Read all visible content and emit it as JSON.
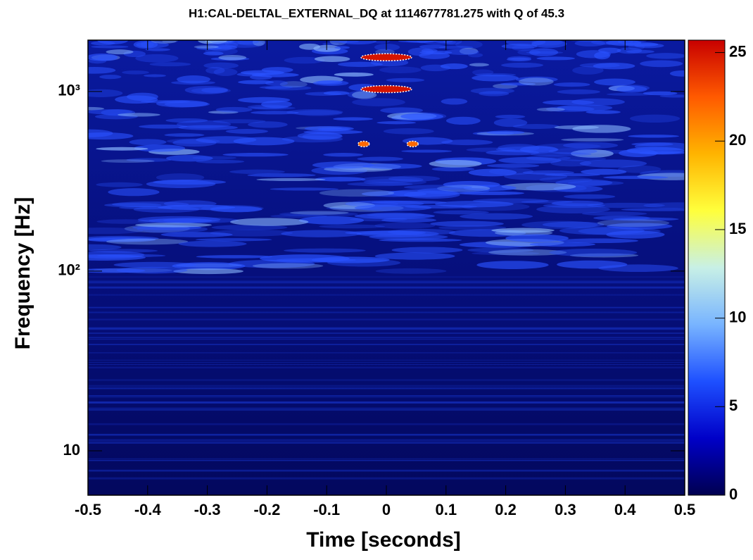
{
  "chart_data": {
    "type": "heatmap",
    "title": "H1:CAL-DELTAL_EXTERNAL_DQ at 1114677781.275 with Q of 45.3",
    "x_label": "Time [seconds]",
    "y_label": "Frequency [Hz]",
    "xlim": [
      -0.5,
      0.5
    ],
    "xticks": [
      -0.5,
      -0.4,
      -0.3,
      -0.2,
      -0.1,
      0,
      0.1,
      0.2,
      0.3,
      0.4,
      0.5
    ],
    "ylim": [
      5.66,
      1930
    ],
    "yscale": "log",
    "yticks": [
      10,
      {
        "value": 100,
        "label": "10²"
      },
      {
        "value": 1000,
        "label": "10³"
      }
    ],
    "zlim": [
      0,
      25.7
    ],
    "zticks": [
      0,
      5,
      10,
      15,
      20,
      25
    ],
    "colormap": [
      "#000050",
      "#0000c8",
      "#1e50ff",
      "#78b4ff",
      "#c8f0e6",
      "#ffff3c",
      "#ffb400",
      "#ff5a00",
      "#c80000"
    ],
    "x": [
      0.0,
      0.0,
      -0.038,
      0.044
    ],
    "y": [
      1550,
      1030,
      510,
      510
    ],
    "values": [
      25,
      25,
      22,
      22
    ]
  }
}
